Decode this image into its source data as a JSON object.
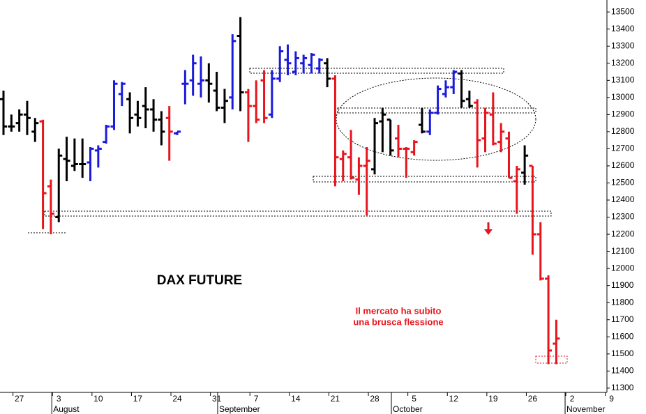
{
  "chart_data": {
    "type": "ohlc",
    "title": "DAX FUTURE",
    "annotation": [
      "Il mercato ha subito",
      "una brusca flessione"
    ],
    "categories": [
      null,
      null,
      "27",
      null,
      null,
      null,
      null,
      "3",
      null,
      null,
      null,
      null,
      "10",
      null,
      null,
      null,
      null,
      "17",
      null,
      null,
      null,
      null,
      "24",
      null,
      null,
      null,
      null,
      "31",
      null,
      null,
      null,
      null,
      "7",
      null,
      null,
      null,
      null,
      "14",
      null,
      null,
      null,
      null,
      "21",
      null,
      null,
      null,
      null,
      "28",
      null,
      null,
      null,
      null,
      "5",
      null,
      null,
      null,
      null,
      "12",
      null,
      null,
      null,
      null,
      "19",
      null,
      null,
      null,
      null,
      "26",
      null,
      null,
      null,
      null,
      "2",
      null,
      null,
      null,
      null,
      "9"
    ],
    "months": [
      {
        "label": "August",
        "index": 7
      },
      {
        "label": "September",
        "index": 28
      },
      {
        "label": "October",
        "index": 50
      },
      {
        "label": "November",
        "index": 72
      }
    ],
    "open": [
      12990,
      12830,
      12850,
      12900,
      12800,
      12860,
      12480,
      12300,
      12640,
      12600,
      12610,
      12620,
      12690,
      12740,
      12830,
      13020,
      12990,
      12900,
      12950,
      12930,
      12870,
      12880,
      12790,
      13080,
      13100,
      13080,
      13100,
      13040,
      12940,
      13000,
      13360,
      13030,
      12950,
      13100,
      12900,
      13110,
      13220,
      13150,
      13200,
      13190,
      13170,
      13200,
      13110,
      12640,
      12650,
      12520,
      12600,
      12580,
      12860,
      12870,
      12760,
      12700,
      12680,
      12840,
      12800,
      12910,
      13020,
      13060,
      13140,
      12990,
      12970,
      12760,
      12900,
      12740,
      12760,
      12510,
      12560,
      12600,
      12200,
      11940,
      11560,
      null,
      null,
      null,
      null,
      null,
      null,
      null
    ],
    "high": [
      13040,
      12900,
      12930,
      12980,
      12880,
      12870,
      12520,
      12700,
      12770,
      12760,
      12760,
      12710,
      12720,
      12840,
      13100,
      13090,
      13030,
      12980,
      13060,
      12990,
      12920,
      12950,
      12800,
      13160,
      13250,
      13240,
      13200,
      13150,
      13050,
      13370,
      13470,
      13050,
      13100,
      13160,
      13160,
      13300,
      13310,
      13270,
      13250,
      13260,
      13230,
      13230,
      13130,
      12690,
      12810,
      12650,
      12710,
      12880,
      12940,
      12870,
      12840,
      12710,
      12750,
      12940,
      12930,
      13070,
      13100,
      13160,
      13160,
      13040,
      12990,
      12940,
      13030,
      12850,
      12800,
      12600,
      12720,
      12600,
      12270,
      11960,
      11700,
      null,
      null,
      null,
      null,
      null,
      null,
      null
    ],
    "low": [
      12780,
      12800,
      12800,
      12780,
      12740,
      12230,
      12200,
      12270,
      12510,
      12570,
      12530,
      12510,
      12590,
      12730,
      12810,
      12950,
      12790,
      12830,
      12820,
      12800,
      12720,
      12630,
      12780,
      12960,
      13010,
      13000,
      12970,
      12920,
      12850,
      12930,
      12920,
      12740,
      12850,
      12850,
      12880,
      13090,
      13130,
      13130,
      13140,
      13140,
      13140,
      13060,
      12480,
      12510,
      12520,
      12430,
      12310,
      12550,
      12680,
      12660,
      12650,
      12530,
      12660,
      12790,
      12780,
      12900,
      13000,
      13020,
      12940,
      12940,
      12590,
      12680,
      12720,
      12680,
      12530,
      12320,
      12490,
      12080,
      11930,
      11440,
      11440,
      null,
      null,
      null,
      null,
      null,
      null,
      null
    ],
    "close": [
      12830,
      12830,
      12900,
      12880,
      12850,
      12440,
      12320,
      12660,
      12630,
      12610,
      12610,
      12700,
      12700,
      12830,
      13080,
      13080,
      12880,
      12880,
      12930,
      12870,
      12800,
      12800,
      12800,
      13080,
      13200,
      13100,
      13080,
      12940,
      12980,
      13330,
      13030,
      12950,
      12870,
      12880,
      13110,
      13270,
      13200,
      13230,
      13230,
      13250,
      13220,
      13110,
      12650,
      12670,
      12530,
      12600,
      12630,
      12850,
      12900,
      12690,
      12700,
      12700,
      12740,
      12800,
      12910,
      13050,
      13060,
      13150,
      12980,
      12950,
      12750,
      12910,
      12730,
      12800,
      12530,
      12580,
      12660,
      12200,
      11940,
      11520,
      11590,
      null,
      null,
      null,
      null,
      null,
      null,
      null
    ],
    "colors": [
      "#000000",
      "#000000",
      "#000000",
      "#000000",
      "#000000",
      "#e8141c",
      "#e8141c",
      "#000000",
      "#000000",
      "#000000",
      "#000000",
      "#1a1adc",
      "#1a1adc",
      "#1a1adc",
      "#1a1adc",
      "#1a1adc",
      "#000000",
      "#000000",
      "#000000",
      "#000000",
      "#000000",
      "#e8141c",
      "#1a1adc",
      "#1a1adc",
      "#1a1adc",
      "#1a1adc",
      "#000000",
      "#000000",
      "#000000",
      "#1a1adc",
      "#000000",
      "#e8141c",
      "#e8141c",
      "#e8141c",
      "#1a1adc",
      "#1a1adc",
      "#1a1adc",
      "#1a1adc",
      "#1a1adc",
      "#1a1adc",
      "#1a1adc",
      "#000000",
      "#e8141c",
      "#e8141c",
      "#e8141c",
      "#e8141c",
      "#e8141c",
      "#000000",
      "#000000",
      "#000000",
      "#e8141c",
      "#e8141c",
      "#e8141c",
      "#000000",
      "#1a1adc",
      "#1a1adc",
      "#1a1adc",
      "#1a1adc",
      "#000000",
      "#000000",
      "#e8141c",
      "#e8141c",
      "#e8141c",
      "#e8141c",
      "#e8141c",
      "#e8141c",
      "#000000",
      "#e8141c",
      "#e8141c",
      "#e8141c",
      "#e8141c",
      null,
      null,
      null,
      null,
      null,
      null,
      null
    ],
    "ylim": [
      11275,
      13570
    ],
    "yticks": [
      11300,
      11400,
      11500,
      11600,
      11700,
      11800,
      11900,
      12000,
      12100,
      12200,
      12300,
      12400,
      12500,
      12600,
      12700,
      12800,
      12900,
      13000,
      13100,
      13200,
      13300,
      13400,
      13500
    ]
  }
}
